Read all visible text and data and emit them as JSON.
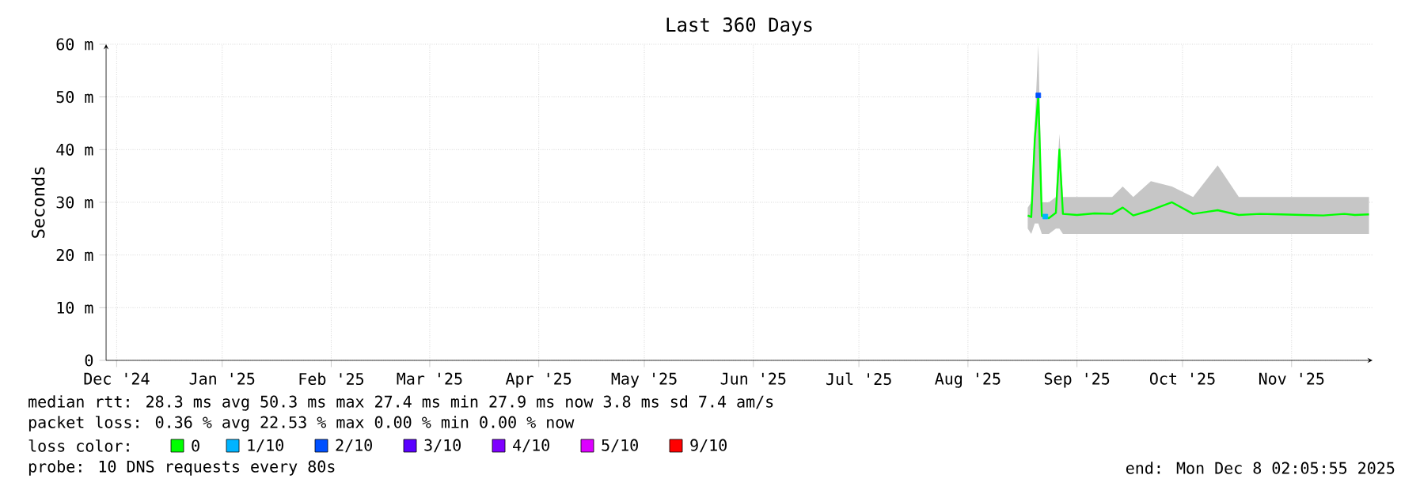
{
  "chart_data": {
    "type": "line",
    "title": "Last 360 Days",
    "ylabel": "Seconds",
    "xlim": [
      "2024-12-13",
      "2025-12-08"
    ],
    "xticks": [
      {
        "value": "2024-12-16",
        "label": "Dec '24"
      },
      {
        "value": "2025-01-15",
        "label": "Jan '25"
      },
      {
        "value": "2025-02-15",
        "label": "Feb '25"
      },
      {
        "value": "2025-03-15",
        "label": "Mar '25"
      },
      {
        "value": "2025-04-15",
        "label": "Apr '25"
      },
      {
        "value": "2025-05-15",
        "label": "May '25"
      },
      {
        "value": "2025-06-15",
        "label": "Jun '25"
      },
      {
        "value": "2025-07-15",
        "label": "Jul '25"
      },
      {
        "value": "2025-08-15",
        "label": "Aug '25"
      },
      {
        "value": "2025-09-15",
        "label": "Sep '25"
      },
      {
        "value": "2025-10-15",
        "label": "Oct '25"
      },
      {
        "value": "2025-11-15",
        "label": "Nov '25"
      }
    ],
    "ylim": [
      0,
      60
    ],
    "yticks": [
      0,
      {
        "value": 10,
        "label": "10 m"
      },
      {
        "value": 20,
        "label": "20 m"
      },
      {
        "value": 30,
        "label": "30 m"
      },
      {
        "value": 40,
        "label": "40 m"
      },
      {
        "value": 50,
        "label": "50 m"
      },
      {
        "value": 60,
        "label": "60 m"
      }
    ],
    "grid": true,
    "legend": "bottom",
    "legend_title": "loss color:",
    "series": [
      {
        "name": "0",
        "color": "#00ff00",
        "x": [
          "2025-09-01",
          "2025-09-02",
          "2025-09-03",
          "2025-09-04",
          "2025-09-05",
          "2025-09-07",
          "2025-09-09",
          "2025-09-10",
          "2025-09-11",
          "2025-09-15",
          "2025-09-20",
          "2025-09-25",
          "2025-09-28",
          "2025-10-01",
          "2025-10-06",
          "2025-10-12",
          "2025-10-18",
          "2025-10-25",
          "2025-10-31",
          "2025-11-06",
          "2025-11-12",
          "2025-11-18",
          "2025-11-24",
          "2025-11-30",
          "2025-12-03",
          "2025-12-07"
        ],
        "values": [
          27.5,
          27.2,
          42,
          50.3,
          27.4,
          27,
          28,
          40,
          27.8,
          27.6,
          27.9,
          27.8,
          29,
          27.5,
          28.5,
          30,
          27.8,
          28.5,
          27.6,
          27.8,
          27.7,
          27.6,
          27.5,
          27.8,
          27.6,
          27.7
        ],
        "lower": [
          25,
          24,
          26,
          26,
          24,
          24,
          25,
          25,
          24,
          24,
          24,
          24,
          24,
          24,
          24,
          24,
          24,
          24,
          24,
          24,
          24,
          24,
          24,
          24,
          24,
          24
        ],
        "upper": [
          29,
          30,
          45,
          60,
          30,
          30,
          31,
          43,
          31,
          31,
          31,
          31,
          33,
          31,
          34,
          33,
          31,
          37,
          31,
          31,
          31,
          31,
          31,
          31,
          31,
          31
        ]
      },
      {
        "name": "1/10",
        "color": "#00b4ff",
        "type": "scatter",
        "x": [
          "2025-09-06"
        ],
        "values": [
          27.3
        ]
      },
      {
        "name": "2/10",
        "color": "#0050ff",
        "type": "scatter",
        "x": [
          "2025-09-04"
        ],
        "values": [
          50.3
        ]
      },
      {
        "name": "3/10",
        "color": "#5a00ff",
        "type": "scatter"
      },
      {
        "name": "4/10",
        "color": "#7e00ff",
        "type": "scatter"
      },
      {
        "name": "5/10",
        "color": "#dd00ff",
        "type": "scatter"
      },
      {
        "name": "9/10",
        "color": "#ff0000",
        "type": "scatter"
      }
    ],
    "annotations": [
      "median rtt: 28.3 ms avg 50.3 ms max 27.4 ms min 27.9 ms now 3.8 ms sd 7.4 am/s",
      "packet loss: 0.36 % avg 22.53 % max 0.00 % min 0.00 % now",
      "probe: 10 DNS requests every 80s",
      "end: Mon Dec 8 02:05:55 2025"
    ]
  }
}
